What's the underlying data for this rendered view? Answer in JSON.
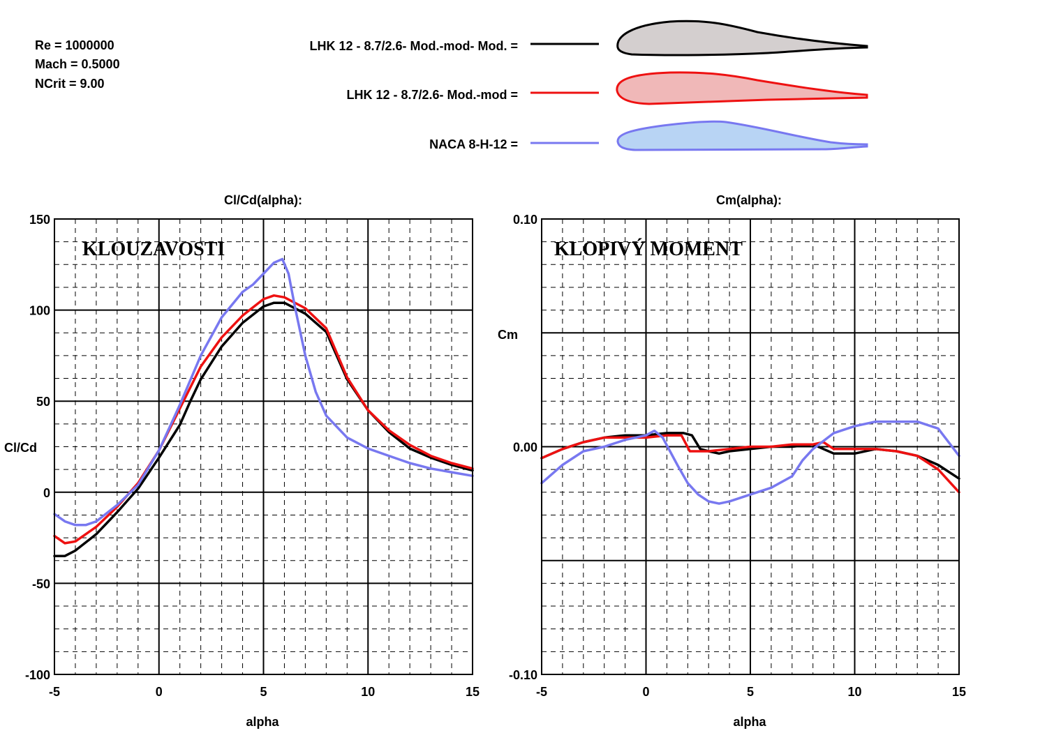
{
  "conditions": [
    "Re = 1000000",
    "Mach = 0.5000",
    "NCrit = 9.00"
  ],
  "legend": [
    {
      "label": "LHK  12 - 8.7/2.6- Mod.-mod- Mod. =",
      "color": "#000000",
      "fill": "#d4cfcf"
    },
    {
      "label": "LHK  12 - 8.7/2.6- Mod.-mod =",
      "color": "#ee1111",
      "fill": "#f0b8b8"
    },
    {
      "label": "NACA 8-H-12 =",
      "color": "#7878f0",
      "fill": "#b8d4f4"
    }
  ],
  "chart_data": [
    {
      "type": "line",
      "title": "Cl/Cd(alpha):",
      "annotation": "KLOUZAVOSTI",
      "xlabel": "alpha",
      "ylabel": "Cl/Cd",
      "xlim": [
        -5,
        15
      ],
      "ylim": [
        -100,
        150
      ],
      "xticks": [
        "-5",
        "0",
        "5",
        "10",
        "15"
      ],
      "yticks": [
        "150",
        "100",
        "50",
        "0",
        "-50",
        "-100"
      ],
      "grid": true,
      "series": [
        {
          "name": "LHK  12 - 8.7/2.6- Mod.-mod- Mod.",
          "color": "#000000",
          "x": [
            -5,
            -4.5,
            -4,
            -3,
            -2,
            -1,
            0,
            1,
            1.5,
            2,
            3,
            4,
            5,
            5.5,
            6,
            7,
            8,
            9,
            10,
            11,
            12,
            13,
            14,
            15
          ],
          "y": [
            -35,
            -35,
            -32,
            -23,
            -11,
            2,
            19,
            37,
            50,
            62,
            80,
            93,
            102,
            104,
            104,
            98,
            88,
            62,
            45,
            33,
            24,
            19,
            15,
            12
          ]
        },
        {
          "name": "LHK  12 - 8.7/2.6- Mod.-mod",
          "color": "#ee1111",
          "x": [
            -5,
            -4.5,
            -4,
            -3,
            -2,
            -1,
            0,
            1,
            2,
            3,
            4,
            5,
            5.5,
            6,
            7,
            8,
            9,
            10,
            11,
            12,
            13,
            14,
            15
          ],
          "y": [
            -24,
            -28,
            -27,
            -19,
            -8,
            5,
            23,
            46,
            69,
            85,
            97,
            106,
            108,
            107,
            101,
            90,
            63,
            45,
            34,
            26,
            20,
            16,
            13
          ]
        },
        {
          "name": "NACA 8-H-12",
          "color": "#7878f0",
          "x": [
            -5,
            -4.5,
            -4,
            -3.5,
            -3,
            -2,
            -1,
            0,
            1,
            2,
            3,
            4,
            4.5,
            5,
            5.5,
            5.9,
            6.2,
            6.5,
            7,
            7.5,
            8,
            9,
            10,
            11,
            12,
            13,
            14,
            15
          ],
          "y": [
            -12,
            -16,
            -18,
            -18,
            -16,
            -7,
            4,
            23,
            48,
            75,
            96,
            110,
            114,
            120,
            126,
            128,
            120,
            102,
            75,
            55,
            42,
            30,
            24,
            20,
            16,
            13,
            11,
            9
          ]
        }
      ]
    },
    {
      "type": "line",
      "title": "Cm(alpha):",
      "annotation": "KLOPIVÝ  MOMENT",
      "xlabel": "alpha",
      "ylabel": "Cm",
      "xlim": [
        -5,
        15
      ],
      "ylim": [
        -0.1,
        0.1
      ],
      "xticks": [
        "-5",
        "0",
        "5",
        "10",
        "15"
      ],
      "yticks": [
        "0.10",
        "0.00",
        "-0.10"
      ],
      "grid": true,
      "series": [
        {
          "name": "LHK  12 - 8.7/2.6- Mod.-mod- Mod.",
          "color": "#000000",
          "x": [
            -5,
            -4,
            -3,
            -2,
            -1,
            0,
            1,
            1.8,
            2.2,
            2.6,
            3,
            3.5,
            4,
            5,
            6,
            7,
            8,
            8.5,
            9,
            10,
            11,
            12,
            13,
            14,
            15
          ],
          "y": [
            -0.005,
            -0.001,
            0.002,
            0.004,
            0.005,
            0.005,
            0.006,
            0.006,
            0.005,
            -0.001,
            -0.002,
            -0.003,
            -0.002,
            -0.001,
            0.0,
            0.0,
            0.001,
            -0.001,
            -0.003,
            -0.003,
            -0.001,
            -0.002,
            -0.004,
            -0.008,
            -0.014
          ]
        },
        {
          "name": "LHK  12 - 8.7/2.6- Mod.-mod",
          "color": "#ee1111",
          "x": [
            -5,
            -4,
            -3,
            -2,
            -1,
            0,
            1,
            1.7,
            2.1,
            2.5,
            3,
            4,
            5,
            6,
            7,
            8,
            8.5,
            9,
            10,
            11,
            12,
            13,
            14,
            15
          ],
          "y": [
            -0.005,
            -0.001,
            0.002,
            0.004,
            0.004,
            0.004,
            0.005,
            0.005,
            -0.002,
            -0.002,
            -0.002,
            -0.001,
            0.0,
            0.0,
            0.001,
            0.001,
            0.002,
            -0.001,
            -0.001,
            -0.001,
            -0.002,
            -0.004,
            -0.01,
            -0.02
          ]
        },
        {
          "name": "NACA 8-H-12",
          "color": "#7878f0",
          "x": [
            -5,
            -4,
            -3,
            -2,
            -1,
            0,
            0.4,
            0.8,
            1.5,
            2,
            2.5,
            3,
            3.5,
            4,
            5,
            6,
            7,
            7.5,
            8,
            9,
            10,
            11,
            12,
            13,
            14,
            15
          ],
          "y": [
            -0.016,
            -0.008,
            -0.002,
            0.0,
            0.003,
            0.005,
            0.007,
            0.004,
            -0.008,
            -0.016,
            -0.021,
            -0.024,
            -0.025,
            -0.024,
            -0.021,
            -0.018,
            -0.013,
            -0.006,
            -0.001,
            0.006,
            0.009,
            0.011,
            0.011,
            0.011,
            0.008,
            -0.004
          ]
        }
      ]
    }
  ]
}
